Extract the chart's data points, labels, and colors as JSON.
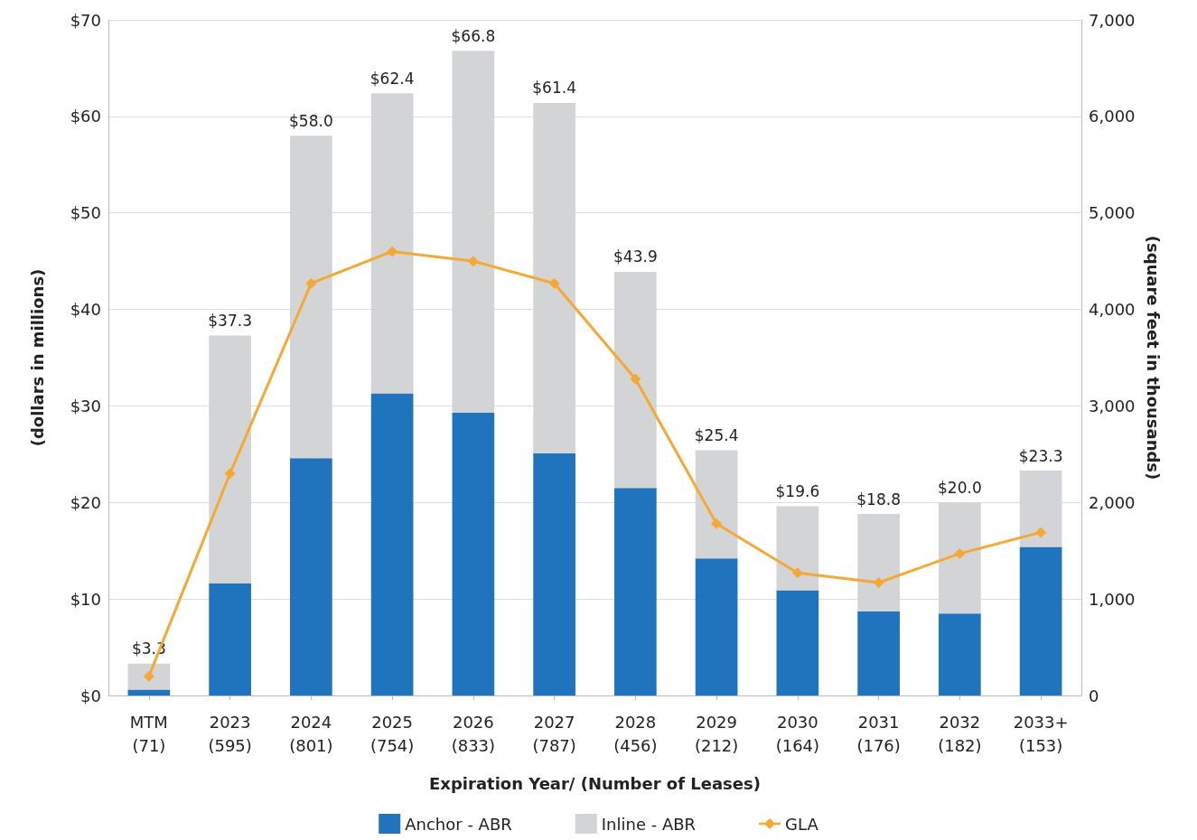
{
  "chart_data": {
    "type": "bar",
    "xlabel": "Expiration Year/ (Number of Leases)",
    "ylabel": "(dollars in millions)",
    "y2label": "(square feet in thousands)",
    "categories": [
      "MTM\n(71)",
      "2023\n(595)",
      "2024\n(801)",
      "2025\n(754)",
      "2026\n(833)",
      "2027\n(787)",
      "2028\n(456)",
      "2029\n(212)",
      "2030\n(164)",
      "2031\n(176)",
      "2032\n(182)",
      "2033+\n(153)"
    ],
    "stacked": true,
    "series": [
      {
        "name": "Anchor - ABR",
        "color": "#1f74bd",
        "values": [
          0.6,
          11.6,
          24.6,
          31.3,
          29.3,
          25.1,
          21.5,
          14.2,
          10.9,
          8.7,
          8.5,
          15.4
        ]
      },
      {
        "name": "Inline - ABR",
        "color": "#d3d4d6",
        "values": [
          2.7,
          25.7,
          33.4,
          31.1,
          37.5,
          36.3,
          22.4,
          11.2,
          8.7,
          10.1,
          11.5,
          7.9
        ]
      },
      {
        "name": "GLA",
        "type": "line",
        "axis": "y2",
        "color": "#f5a833",
        "values": [
          200,
          2300,
          4270,
          4600,
          4500,
          4270,
          3280,
          1780,
          1270,
          1170,
          1470,
          1690
        ]
      }
    ],
    "totals": [
      "$3.3",
      "$37.3",
      "$58.0",
      "$62.4",
      "$66.8",
      "$61.4",
      "$43.9",
      "$25.4",
      "$19.6",
      "$18.8",
      "$20.0",
      "$23.3"
    ],
    "ylim": [
      0,
      70
    ],
    "yticks": [
      {
        "value": 0,
        "label": "$0"
      },
      {
        "value": 10,
        "label": "$10"
      },
      {
        "value": 20,
        "label": "$20"
      },
      {
        "value": 30,
        "label": "$30"
      },
      {
        "value": 40,
        "label": "$40"
      },
      {
        "value": 50,
        "label": "$50"
      },
      {
        "value": 60,
        "label": "$60"
      },
      {
        "value": 70,
        "label": "$70"
      }
    ],
    "y2lim": [
      0,
      7000
    ],
    "y2ticks": [
      0,
      {
        "value": 1000,
        "label": "1,000"
      },
      {
        "value": 2000,
        "label": "2,000"
      },
      {
        "value": 3000,
        "label": "3,000"
      },
      {
        "value": 4000,
        "label": "4,000"
      },
      {
        "value": 5000,
        "label": "5,000"
      },
      {
        "value": 6000,
        "label": "6,000"
      },
      {
        "value": 7000,
        "label": "7,000"
      }
    ],
    "grid": "y",
    "legend": "bottom",
    "marker": "diamond",
    "line_style": "solid"
  }
}
